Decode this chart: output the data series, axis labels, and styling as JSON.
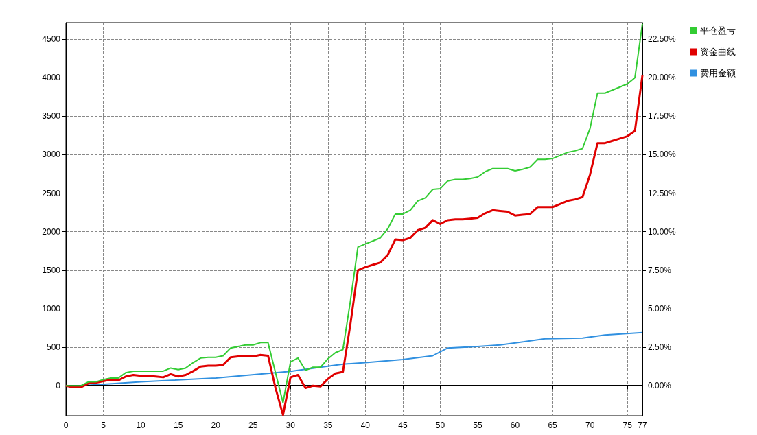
{
  "chart_data": {
    "type": "line",
    "x": [
      0,
      1,
      2,
      3,
      4,
      5,
      6,
      7,
      8,
      9,
      10,
      11,
      12,
      13,
      14,
      15,
      16,
      17,
      18,
      19,
      20,
      21,
      22,
      23,
      24,
      25,
      26,
      27,
      28,
      29,
      30,
      31,
      32,
      33,
      34,
      35,
      36,
      37,
      38,
      39,
      40,
      41,
      42,
      43,
      44,
      45,
      46,
      47,
      48,
      49,
      50,
      51,
      52,
      53,
      54,
      55,
      56,
      57,
      58,
      59,
      60,
      61,
      62,
      63,
      64,
      65,
      66,
      67,
      68,
      69,
      70,
      71,
      72,
      73,
      74,
      75,
      76,
      77
    ],
    "series": [
      {
        "name": "平仓盈亏",
        "color": "#33cc33",
        "values": [
          0,
          0,
          0,
          50,
          50,
          80,
          100,
          100,
          170,
          190,
          190,
          190,
          190,
          190,
          230,
          210,
          230,
          300,
          360,
          370,
          370,
          390,
          490,
          510,
          530,
          530,
          560,
          560,
          170,
          -220,
          310,
          360,
          200,
          240,
          240,
          350,
          430,
          470,
          1100,
          1800,
          1840,
          1880,
          1920,
          2040,
          2230,
          2230,
          2280,
          2400,
          2440,
          2550,
          2560,
          2660,
          2680,
          2680,
          2690,
          2710,
          2780,
          2820,
          2820,
          2820,
          2790,
          2810,
          2840,
          2940,
          2940,
          2950,
          2990,
          3030,
          3050,
          3080,
          3340,
          3800,
          3800,
          3840,
          3880,
          3920,
          4000,
          4700
        ]
      },
      {
        "name": "资金曲线",
        "color": "#e00000",
        "values": [
          0,
          -20,
          -20,
          30,
          40,
          60,
          80,
          70,
          120,
          140,
          130,
          130,
          120,
          110,
          150,
          120,
          140,
          190,
          250,
          260,
          260,
          270,
          370,
          380,
          390,
          380,
          400,
          390,
          -30,
          -380,
          110,
          140,
          -30,
          0,
          -10,
          90,
          160,
          180,
          800,
          1500,
          1540,
          1570,
          1600,
          1700,
          1900,
          1890,
          1920,
          2020,
          2050,
          2150,
          2100,
          2150,
          2160,
          2160,
          2170,
          2180,
          2240,
          2280,
          2270,
          2260,
          2210,
          2220,
          2230,
          2320,
          2320,
          2320,
          2360,
          2400,
          2420,
          2450,
          2740,
          3150,
          3150,
          3180,
          3210,
          3240,
          3310,
          4030
        ]
      },
      {
        "name": "费用金额",
        "color": "#3090e0",
        "x": [
          0,
          2,
          10,
          20,
          30,
          37,
          40,
          45,
          49,
          51,
          55,
          58,
          64,
          69,
          72,
          77
        ],
        "values": [
          0,
          0,
          50,
          100,
          187,
          280,
          300,
          340,
          390,
          490,
          510,
          530,
          610,
          620,
          660,
          690
        ]
      }
    ],
    "xlim": [
      0,
      77
    ],
    "xticks": [
      0,
      5,
      10,
      15,
      20,
      25,
      30,
      35,
      40,
      45,
      50,
      55,
      60,
      65,
      70,
      75,
      77
    ],
    "ylim": [
      -390,
      4715
    ],
    "yticks": [
      0,
      500,
      1000,
      1500,
      2000,
      2500,
      3000,
      3500,
      4000,
      4500
    ],
    "y2lim": [
      -1.95,
      23.575
    ],
    "y2ticks": [
      {
        "value": 0,
        "label": "0.00%"
      },
      {
        "value": 2.5,
        "label": "2.50%"
      },
      {
        "value": 5,
        "label": "5.00%"
      },
      {
        "value": 7.5,
        "label": "7.50%"
      },
      {
        "value": 10,
        "label": "10.00%"
      },
      {
        "value": 12.5,
        "label": "12.50%"
      },
      {
        "value": 15,
        "label": "15.00%"
      },
      {
        "value": 17.5,
        "label": "17.50%"
      },
      {
        "value": 20,
        "label": "20.00%"
      },
      {
        "value": 22.5,
        "label": "22.50%"
      }
    ],
    "ref_lines": [
      {
        "axis": "y",
        "value": 0,
        "color": "#000000"
      }
    ],
    "grid": true,
    "legend": "top right",
    "marker": "none",
    "line_style": "solid"
  }
}
